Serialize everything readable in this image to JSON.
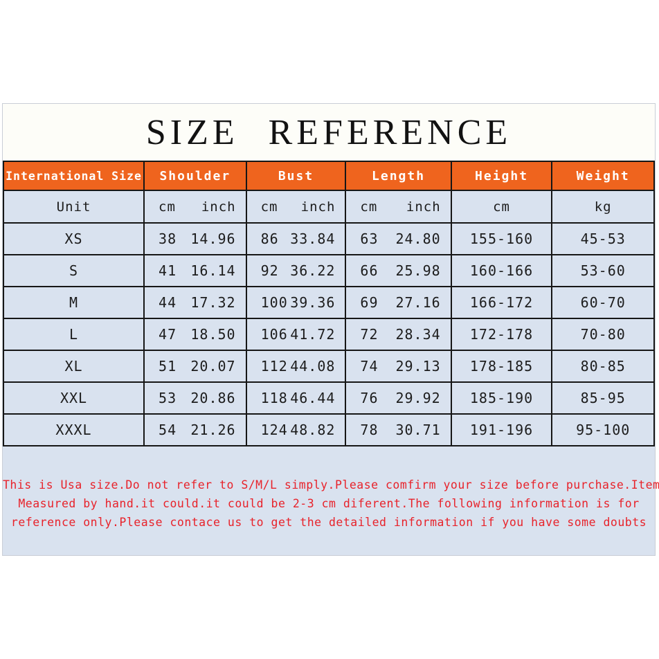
{
  "page": {
    "title": "SIZE REFERENCE"
  },
  "colors": {
    "header_bg": "#ef641e",
    "header_text": "#ffffff",
    "row_bg": "#d9e2ef",
    "grid_border": "#161616",
    "note_text": "#e8222a",
    "title_band_bg": "#fdfdf8"
  },
  "table": {
    "columns": [
      "International Size",
      "Shoulder",
      "Bust",
      "Length",
      "Height",
      "Weight"
    ],
    "unit": {
      "label": "Unit",
      "shoulder": [
        "cm",
        "inch"
      ],
      "bust": [
        "cm",
        "inch"
      ],
      "length": [
        "cm",
        "inch"
      ],
      "height": "cm",
      "weight": "kg"
    },
    "rows": [
      {
        "size": "XS",
        "shoulder": [
          "38",
          "14.96"
        ],
        "bust": [
          "86",
          "33.84"
        ],
        "length": [
          "63",
          "24.80"
        ],
        "height": "155-160",
        "weight": "45-53"
      },
      {
        "size": "S",
        "shoulder": [
          "41",
          "16.14"
        ],
        "bust": [
          "92",
          "36.22"
        ],
        "length": [
          "66",
          "25.98"
        ],
        "height": "160-166",
        "weight": "53-60"
      },
      {
        "size": "M",
        "shoulder": [
          "44",
          "17.32"
        ],
        "bust": [
          "100",
          "39.36"
        ],
        "length": [
          "69",
          "27.16"
        ],
        "height": "166-172",
        "weight": "60-70"
      },
      {
        "size": "L",
        "shoulder": [
          "47",
          "18.50"
        ],
        "bust": [
          "106",
          "41.72"
        ],
        "length": [
          "72",
          "28.34"
        ],
        "height": "172-178",
        "weight": "70-80"
      },
      {
        "size": "XL",
        "shoulder": [
          "51",
          "20.07"
        ],
        "bust": [
          "112",
          "44.08"
        ],
        "length": [
          "74",
          "29.13"
        ],
        "height": "178-185",
        "weight": "80-85"
      },
      {
        "size": "XXL",
        "shoulder": [
          "53",
          "20.86"
        ],
        "bust": [
          "118",
          "46.44"
        ],
        "length": [
          "76",
          "29.92"
        ],
        "height": "185-190",
        "weight": "85-95"
      },
      {
        "size": "XXXL",
        "shoulder": [
          "54",
          "21.26"
        ],
        "bust": [
          "124",
          "48.82"
        ],
        "length": [
          "78",
          "30.71"
        ],
        "height": "191-196",
        "weight": "95-100"
      }
    ]
  },
  "note": {
    "lines": [
      "This is Usa size.Do not refer to S/M/L simply.Please comfirm your size before purchase.Item",
      "Measured by hand.it could.it could be 2-3 cm diferent.The following information is for",
      "reference only.Please contace us to get the detailed information if you have some doubts"
    ]
  }
}
